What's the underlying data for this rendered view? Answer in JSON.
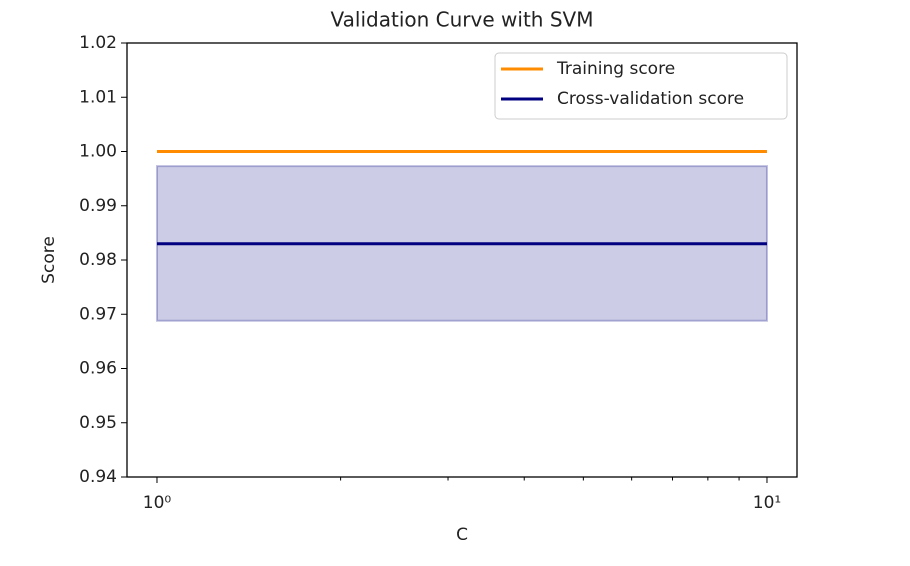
{
  "chart_data": {
    "type": "line",
    "title": "Validation Curve with SVM",
    "xlabel": "C",
    "ylabel": "Score",
    "x": [
      1,
      10
    ],
    "series": [
      {
        "name": "Training score",
        "color": "#ff8c00",
        "values": [
          1.0,
          1.0
        ]
      },
      {
        "name": "Cross-validation score",
        "color": "#000080",
        "values": [
          0.983,
          0.983
        ],
        "lower": [
          0.9688,
          0.9688
        ],
        "upper": [
          0.9973,
          0.9973
        ]
      }
    ],
    "xscale": "log",
    "xlim": [
      0.893,
      11.2
    ],
    "xticks": [
      {
        "value": 1,
        "label": "10⁰"
      },
      {
        "value": 10,
        "label": "10¹"
      }
    ],
    "xminorticks": [
      2,
      3,
      4,
      5,
      6,
      7,
      8,
      9
    ],
    "ylim": [
      0.94,
      1.02
    ],
    "yticks": [
      0.94,
      0.95,
      0.96,
      0.97,
      0.98,
      0.99,
      {
        "value": 1,
        "label": "1.00"
      },
      1.01,
      1.02
    ],
    "legend": "upper right",
    "grid": false
  }
}
